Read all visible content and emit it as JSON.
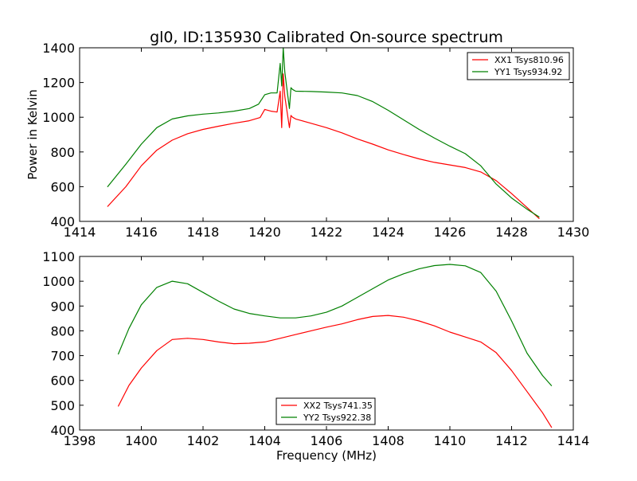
{
  "colors": {
    "red": "#ff0000",
    "green": "#008000",
    "axis": "#000000",
    "background": "#ffffff"
  },
  "chart_data": [
    {
      "type": "line",
      "title": "gl0, ID:135930 Calibrated On-source spectrum",
      "xlabel": "",
      "ylabel": "Power in Kelvin",
      "xlim": [
        1414,
        1430
      ],
      "ylim": [
        400,
        1400
      ],
      "xticks": [
        1414,
        1416,
        1418,
        1420,
        1422,
        1424,
        1426,
        1428,
        1430
      ],
      "yticks": [
        400,
        600,
        800,
        1000,
        1200,
        1400
      ],
      "grid": false,
      "legend_position": "top-right",
      "series": [
        {
          "name": "XX1 Tsys810.96",
          "color": "#ff0000",
          "x": [
            1414.9,
            1415.5,
            1416.0,
            1416.5,
            1417.0,
            1417.5,
            1418.0,
            1418.5,
            1419.0,
            1419.5,
            1419.85,
            1420.0,
            1420.2,
            1420.4,
            1420.5,
            1420.55,
            1420.6,
            1420.65,
            1420.7,
            1420.8,
            1420.85,
            1420.9,
            1421.0,
            1421.2,
            1421.5,
            1422.0,
            1422.5,
            1423.0,
            1423.5,
            1424.0,
            1424.5,
            1425.0,
            1425.5,
            1426.0,
            1426.5,
            1427.0,
            1427.5,
            1428.0,
            1428.5,
            1428.9
          ],
          "y": [
            485,
            600,
            720,
            810,
            868,
            905,
            930,
            948,
            965,
            980,
            998,
            1045,
            1035,
            1030,
            1150,
            940,
            1250,
            1120,
            1060,
            940,
            1010,
            1000,
            990,
            980,
            965,
            940,
            910,
            875,
            845,
            812,
            785,
            760,
            740,
            725,
            710,
            685,
            635,
            560,
            480,
            415
          ]
        },
        {
          "name": "YY1 Tsys934.92",
          "color": "#008000",
          "x": [
            1414.9,
            1415.5,
            1416.0,
            1416.5,
            1417.0,
            1417.5,
            1418.0,
            1418.5,
            1419.0,
            1419.5,
            1419.8,
            1420.0,
            1420.2,
            1420.4,
            1420.5,
            1420.55,
            1420.6,
            1420.65,
            1420.7,
            1420.8,
            1420.85,
            1420.9,
            1421.0,
            1421.5,
            1422.0,
            1422.5,
            1423.0,
            1423.5,
            1424.0,
            1424.5,
            1425.0,
            1425.5,
            1426.0,
            1426.5,
            1427.0,
            1427.5,
            1428.0,
            1428.5,
            1428.9
          ],
          "y": [
            598,
            730,
            845,
            940,
            990,
            1008,
            1018,
            1025,
            1035,
            1050,
            1075,
            1130,
            1140,
            1140,
            1310,
            1180,
            1400,
            1260,
            1190,
            1050,
            1170,
            1160,
            1150,
            1148,
            1145,
            1140,
            1125,
            1090,
            1040,
            985,
            930,
            880,
            833,
            790,
            720,
            615,
            535,
            470,
            425
          ]
        }
      ]
    },
    {
      "type": "line",
      "title": "",
      "xlabel": "Frequency (MHz)",
      "ylabel": "",
      "xlim": [
        1398,
        1414
      ],
      "ylim": [
        400,
        1100
      ],
      "xticks": [
        1398,
        1400,
        1402,
        1404,
        1406,
        1408,
        1410,
        1412,
        1414
      ],
      "yticks": [
        400,
        500,
        600,
        700,
        800,
        900,
        1000,
        1100
      ],
      "grid": false,
      "legend_position": "lower center",
      "series": [
        {
          "name": "XX2 Tsys741.35",
          "color": "#ff0000",
          "x": [
            1399.25,
            1399.6,
            1400.0,
            1400.5,
            1401.0,
            1401.5,
            1402.0,
            1402.5,
            1403.0,
            1403.5,
            1404.0,
            1404.5,
            1405.0,
            1405.5,
            1406.0,
            1406.5,
            1407.0,
            1407.5,
            1408.0,
            1408.5,
            1409.0,
            1409.5,
            1410.0,
            1410.5,
            1411.0,
            1411.5,
            1412.0,
            1412.5,
            1413.0,
            1413.3
          ],
          "y": [
            495,
            580,
            650,
            720,
            765,
            770,
            765,
            755,
            748,
            750,
            755,
            770,
            785,
            800,
            815,
            828,
            845,
            858,
            862,
            855,
            840,
            820,
            795,
            775,
            755,
            712,
            640,
            555,
            470,
            410
          ]
        },
        {
          "name": "YY2 Tsys922.38",
          "color": "#008000",
          "x": [
            1399.25,
            1399.6,
            1400.0,
            1400.5,
            1401.0,
            1401.5,
            1402.0,
            1402.5,
            1403.0,
            1403.5,
            1404.0,
            1404.5,
            1405.0,
            1405.5,
            1406.0,
            1406.5,
            1407.0,
            1407.5,
            1408.0,
            1408.5,
            1409.0,
            1409.5,
            1410.0,
            1410.5,
            1411.0,
            1411.5,
            1412.0,
            1412.5,
            1413.0,
            1413.3
          ],
          "y": [
            705,
            810,
            905,
            975,
            1000,
            990,
            955,
            920,
            888,
            870,
            860,
            852,
            852,
            860,
            875,
            900,
            935,
            970,
            1005,
            1030,
            1050,
            1063,
            1068,
            1062,
            1035,
            960,
            840,
            710,
            620,
            578
          ]
        }
      ]
    }
  ]
}
